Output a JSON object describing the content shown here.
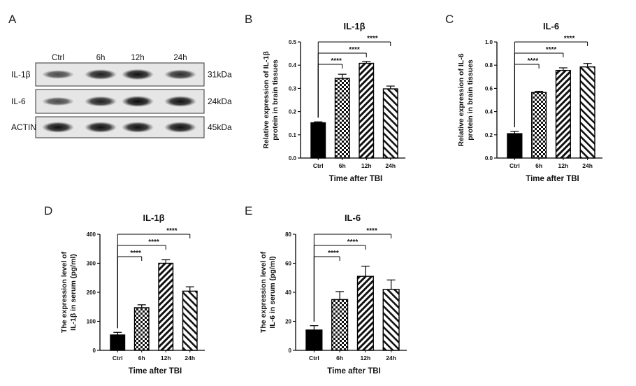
{
  "blot": {
    "panel_label": "A",
    "lanes": [
      "Ctrl",
      "6h",
      "12h",
      "24h"
    ],
    "rows": [
      {
        "protein": "IL-1β",
        "kda": "31kDa",
        "intensity": [
          0.55,
          0.85,
          0.95,
          0.75
        ]
      },
      {
        "protein": "IL-6",
        "kda": "24kDa",
        "intensity": [
          0.55,
          0.85,
          1.0,
          0.95
        ]
      },
      {
        "protein": "ACTIN",
        "kda": "45kDa",
        "intensity": [
          0.95,
          0.95,
          0.95,
          0.95
        ]
      }
    ]
  },
  "chart_data": [
    {
      "panel_label": "B",
      "type": "bar",
      "title": "IL-1β",
      "ylabel_lines": [
        "Relative expression of IL-1β",
        "protein in brain tissues"
      ],
      "xlabel": "Time after TBI",
      "categories": [
        "Ctrl",
        "6h",
        "12h",
        "24h"
      ],
      "values": [
        0.152,
        0.343,
        0.408,
        0.298
      ],
      "errors": [
        0.004,
        0.018,
        0.008,
        0.012
      ],
      "ylim": [
        0,
        0.5
      ],
      "yticks": [
        0,
        0.1,
        0.2,
        0.3,
        0.4,
        0.5
      ],
      "ytick_labels": [
        "0.0",
        "0.1",
        "0.2",
        "0.3",
        "0.4",
        "0.5"
      ],
      "fills": [
        "solid",
        "checker",
        "diag-dense",
        "diag-wide"
      ],
      "significance": [
        {
          "from": "Ctrl",
          "to": "6h",
          "label": "****"
        },
        {
          "from": "Ctrl",
          "to": "12h",
          "label": "****"
        },
        {
          "from": "Ctrl",
          "to": "24h",
          "label": "****"
        }
      ]
    },
    {
      "panel_label": "C",
      "type": "bar",
      "title": "IL-6",
      "ylabel_lines": [
        "Relative expression of IL-6",
        "protein in brain tissues"
      ],
      "xlabel": "Time after TBI",
      "categories": [
        "Ctrl",
        "6h",
        "12h",
        "24h"
      ],
      "values": [
        0.21,
        0.565,
        0.755,
        0.785
      ],
      "errors": [
        0.02,
        0.01,
        0.022,
        0.03
      ],
      "ylim": [
        0,
        1.0
      ],
      "yticks": [
        0,
        0.2,
        0.4,
        0.6,
        0.8,
        1.0
      ],
      "ytick_labels": [
        "0.0",
        "0.2",
        "0.4",
        "0.6",
        "0.8",
        "1.0"
      ],
      "fills": [
        "solid",
        "checker",
        "diag-dense",
        "diag-wide"
      ],
      "significance": [
        {
          "from": "Ctrl",
          "to": "6h",
          "label": "****"
        },
        {
          "from": "Ctrl",
          "to": "12h",
          "label": "****"
        },
        {
          "from": "Ctrl",
          "to": "24h",
          "label": "****"
        }
      ]
    },
    {
      "panel_label": "D",
      "type": "bar",
      "title": "IL-1β",
      "ylabel_lines": [
        "The expression level of",
        "IL-1β in serum (pg/ml)"
      ],
      "xlabel": "Time after TBI",
      "categories": [
        "Ctrl",
        "6h",
        "12h",
        "24h"
      ],
      "values": [
        53,
        147,
        300,
        204
      ],
      "errors": [
        9,
        10,
        12,
        15
      ],
      "ylim": [
        0,
        400
      ],
      "yticks": [
        0,
        100,
        200,
        300,
        400
      ],
      "ytick_labels": [
        "0",
        "100",
        "200",
        "300",
        "400"
      ],
      "fills": [
        "solid",
        "checker",
        "diag-dense",
        "diag-wide"
      ],
      "significance": [
        {
          "from": "Ctrl",
          "to": "6h",
          "label": "****"
        },
        {
          "from": "Ctrl",
          "to": "12h",
          "label": "****"
        },
        {
          "from": "Ctrl",
          "to": "24h",
          "label": "****"
        }
      ]
    },
    {
      "panel_label": "E",
      "type": "bar",
      "title": "IL-6",
      "ylabel_lines": [
        "The expression level of",
        "IL-6 in serum (pg/ml)"
      ],
      "xlabel": "Time after TBI",
      "categories": [
        "Ctrl",
        "6h",
        "12h",
        "24h"
      ],
      "values": [
        14,
        35,
        51,
        42
      ],
      "errors": [
        3,
        5.5,
        7,
        6.5
      ],
      "ylim": [
        0,
        80
      ],
      "yticks": [
        0,
        20,
        40,
        60,
        80
      ],
      "ytick_labels": [
        "0",
        "20",
        "40",
        "60",
        "80"
      ],
      "fills": [
        "solid",
        "checker",
        "diag-dense",
        "diag-wide"
      ],
      "significance": [
        {
          "from": "Ctrl",
          "to": "6h",
          "label": "****"
        },
        {
          "from": "Ctrl",
          "to": "12h",
          "label": "****"
        },
        {
          "from": "Ctrl",
          "to": "24h",
          "label": "****"
        }
      ]
    }
  ]
}
